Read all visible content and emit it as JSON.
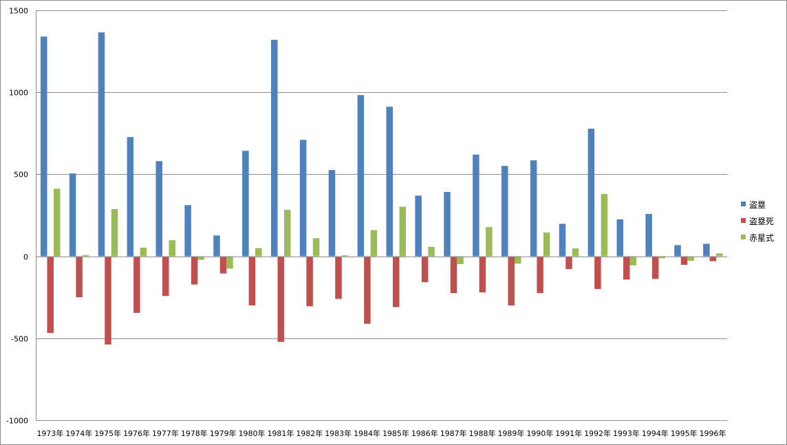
{
  "chart_data": {
    "type": "bar",
    "title": "",
    "xlabel": "",
    "ylabel": "",
    "ylim": [
      -1000,
      1500
    ],
    "yticks": [
      -1000,
      -500,
      0,
      500,
      1000,
      1500
    ],
    "ytick_labels": [
      "-1000",
      "-500",
      "0",
      "500",
      "1000",
      "1500"
    ],
    "grid": true,
    "legend_position": "right",
    "categories": [
      "1973年",
      "1974年",
      "1975年",
      "1976年",
      "1977年",
      "1978年",
      "1979年",
      "1980年",
      "1981年",
      "1982年",
      "1983年",
      "1984年",
      "1985年",
      "1986年",
      "1987年",
      "1988年",
      "1989年",
      "1990年",
      "1991年",
      "1992年",
      "1993年",
      "1994年",
      "1995年",
      "1996年"
    ],
    "series": [
      {
        "name": "盗塁",
        "color": "#4f81bd",
        "values": [
          1340,
          505,
          1365,
          727,
          580,
          312,
          127,
          643,
          1320,
          710,
          526,
          983,
          912,
          370,
          392,
          620,
          551,
          585,
          198,
          778,
          225,
          258,
          68,
          76
        ]
      },
      {
        "name": "盗塁死",
        "color": "#c0504d",
        "values": [
          -468,
          -250,
          -538,
          -345,
          -242,
          -172,
          -105,
          -300,
          -522,
          -305,
          -260,
          -412,
          -310,
          -158,
          -225,
          -220,
          -300,
          -225,
          -78,
          -200,
          -142,
          -138,
          -52,
          -30
        ]
      },
      {
        "name": "赤星式",
        "color": "#9bbb59",
        "values": [
          412,
          8,
          288,
          53,
          98,
          -22,
          -75,
          50,
          283,
          110,
          6,
          160,
          302,
          57,
          -48,
          178,
          -45,
          145,
          48,
          380,
          -55,
          -12,
          -28,
          18
        ]
      }
    ]
  }
}
